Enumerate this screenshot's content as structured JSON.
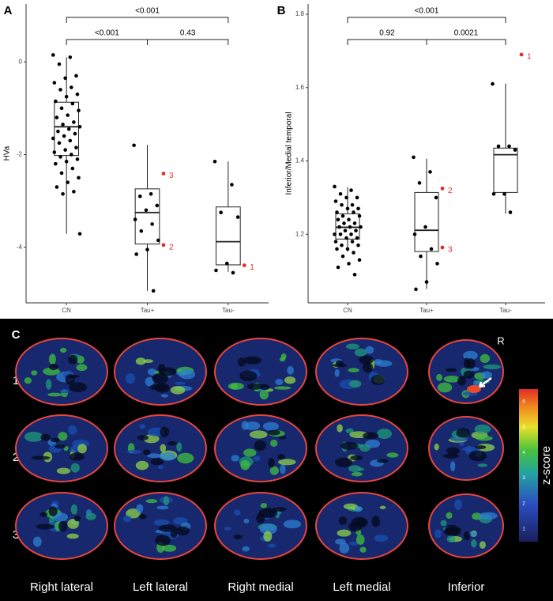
{
  "chart_data": [
    {
      "type": "box",
      "label": "A",
      "ylabel": "HVa",
      "categories": [
        "CN",
        "Tau+",
        "Tau-"
      ],
      "ylim": [
        -5.2,
        1.25
      ],
      "yticks": [
        -4,
        -2,
        0
      ],
      "boxes": [
        {
          "min": -3.71,
          "q1": -2.02,
          "median": -1.4,
          "q3": -0.87,
          "max": 0.1,
          "points": [
            0.15,
            0.1,
            -0.05,
            -0.3,
            -0.35,
            -0.45,
            -0.55,
            -0.6,
            -0.7,
            -0.75,
            -0.85,
            -0.9,
            -1.0,
            -1.05,
            -1.15,
            -1.2,
            -1.3,
            -1.35,
            -1.4,
            -1.45,
            -1.5,
            -1.55,
            -1.6,
            -1.65,
            -1.7,
            -1.75,
            -1.85,
            -1.9,
            -1.95,
            -2.0,
            -2.05,
            -2.1,
            -2.15,
            -2.2,
            -2.3,
            -2.4,
            -2.5,
            -2.6,
            -2.7,
            -2.8,
            -2.85,
            -3.71
          ]
        },
        {
          "min": -4.94,
          "q1": -3.93,
          "median": -3.25,
          "q3": -2.74,
          "max": -1.79,
          "points": [
            -1.8,
            -2.85,
            -2.9,
            -3.1,
            -3.2,
            -3.4,
            -3.5,
            -3.65,
            -3.85,
            -4.05,
            -4.15,
            -4.94
          ]
        },
        {
          "min": -4.53,
          "q1": -4.38,
          "median": -3.88,
          "q3": -3.13,
          "max": -2.15,
          "points": [
            -2.15,
            -2.65,
            -3.25,
            -3.35,
            -4.35,
            -4.5,
            -4.55
          ]
        }
      ],
      "highlighted": [
        {
          "category": 1,
          "value": -2.41,
          "label": "3"
        },
        {
          "category": 1,
          "value": -3.95,
          "label": "2"
        },
        {
          "category": 2,
          "value": -4.39,
          "label": "1"
        }
      ],
      "comparisons": [
        {
          "groups": [
            0,
            2
          ],
          "label": "<0.001"
        },
        {
          "groups": [
            0,
            1
          ],
          "label": "<0.001"
        },
        {
          "groups": [
            1,
            2
          ],
          "label": "0.43"
        }
      ]
    },
    {
      "type": "box",
      "label": "B",
      "ylabel": "Inferior/Medial temporal",
      "categories": [
        "CN",
        "Tau+",
        "Tau-"
      ],
      "ylim": [
        1.013,
        1.828
      ],
      "yticks": [
        1.2,
        1.4,
        1.6,
        1.8
      ],
      "boxes": [
        {
          "min": 1.153,
          "q1": 1.187,
          "median": 1.219,
          "q3": 1.256,
          "max": 1.329,
          "points": [
            1.33,
            1.32,
            1.31,
            1.3,
            1.3,
            1.29,
            1.28,
            1.28,
            1.27,
            1.27,
            1.26,
            1.26,
            1.25,
            1.25,
            1.24,
            1.24,
            1.23,
            1.23,
            1.22,
            1.22,
            1.22,
            1.21,
            1.21,
            1.2,
            1.2,
            1.2,
            1.19,
            1.19,
            1.18,
            1.18,
            1.17,
            1.17,
            1.16,
            1.16,
            1.15,
            1.14,
            1.13,
            1.12,
            1.11,
            1.09
          ]
        },
        {
          "min": 1.051,
          "q1": 1.153,
          "median": 1.211,
          "q3": 1.314,
          "max": 1.406,
          "points": [
            1.41,
            1.37,
            1.34,
            1.3,
            1.22,
            1.2,
            1.16,
            1.14,
            1.12,
            1.07,
            1.05
          ]
        },
        {
          "min": 1.256,
          "q1": 1.314,
          "median": 1.417,
          "q3": 1.435,
          "max": 1.611,
          "points": [
            1.61,
            1.44,
            1.44,
            1.43,
            1.31,
            1.31,
            1.26
          ]
        }
      ],
      "highlighted": [
        {
          "category": 2,
          "value": 1.69,
          "label": "1"
        },
        {
          "category": 1,
          "value": 1.325,
          "label": "2"
        },
        {
          "category": 1,
          "value": 1.164,
          "label": "3"
        }
      ],
      "comparisons": [
        {
          "groups": [
            0,
            2
          ],
          "label": "<0.001"
        },
        {
          "groups": [
            0,
            1
          ],
          "label": "0.92"
        },
        {
          "groups": [
            1,
            2
          ],
          "label": "0.0021"
        }
      ]
    }
  ],
  "panel_c": {
    "label": "C",
    "marker": "R",
    "rows": [
      "1",
      "2",
      "3"
    ],
    "views": [
      "Right lateral",
      "Left lateral",
      "Right medial",
      "Left medial",
      "Inferior"
    ],
    "colorbar": {
      "label": "z-score",
      "lim": [
        0.5,
        6.5
      ],
      "ticks": [
        1,
        2,
        3,
        4,
        5,
        6
      ]
    }
  }
}
